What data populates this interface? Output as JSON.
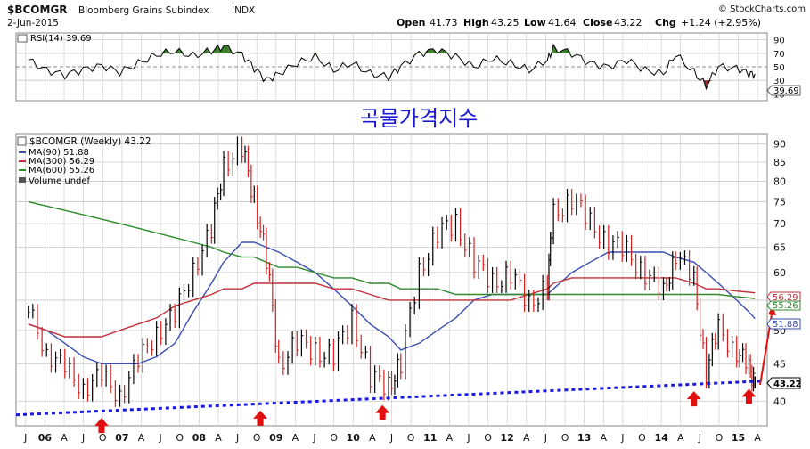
{
  "header": {
    "symbol": "$BCOMGR",
    "name": "Bloomberg Grains Subindex",
    "exchange": "INDX",
    "date": "2-Jun-2015",
    "copyright": "© StockCharts.com",
    "ohlc": {
      "open_label": "Open",
      "open": "41.73",
      "high_label": "High",
      "high": "43.25",
      "low_label": "Low",
      "low": "41.64",
      "close_label": "Close",
      "close": "43.22",
      "chg_label": "Chg",
      "chg": "+1.24 (+2.95%)"
    }
  },
  "annotation_title": "곡물가격지수",
  "rsi": {
    "label": "RSI(14) 39.69",
    "last_value_badge": "39.69",
    "ticks": [
      "90",
      "70",
      "50",
      "30",
      "10"
    ],
    "overbought": 70,
    "oversold": 30,
    "ylim": [
      0,
      100
    ],
    "colors": {
      "line": "#000000",
      "overbought_fill": "#3a7d2a",
      "oversold_fill": "#8b2e2e"
    }
  },
  "legend": {
    "main": "$BCOMGR (Weekly) 43.22",
    "ma90": "MA(90) 51.88",
    "ma300": "MA(300) 56.29",
    "ma600": "MA(600) 55.26",
    "volume": "Volume undef"
  },
  "price_badges": {
    "ma300": "56.29",
    "ma600": "55.26",
    "ma90": "51.88",
    "close": "43.22"
  },
  "colors": {
    "price": "#000000",
    "down_bar": "#d62020",
    "ma90": "#3a4fb0",
    "ma300": "#c0303a",
    "ma600": "#2c8a2c",
    "trendline": "#1a1ae0",
    "arrow": "#e01010",
    "grid": "#c8c8c8"
  },
  "chart_data": {
    "type": "line",
    "title": "$BCOMGR (Weekly)",
    "y_scale": "log",
    "ylim": [
      37,
      93
    ],
    "y_ticks": [
      40,
      45,
      50,
      55,
      60,
      65,
      70,
      75,
      80,
      85,
      90
    ],
    "x_labels": [
      "J",
      "06",
      "A",
      "J",
      "O",
      "07",
      "A",
      "J",
      "O",
      "08",
      "A",
      "J",
      "O",
      "09",
      "A",
      "J",
      "O",
      "10",
      "A",
      "J",
      "O",
      "11",
      "A",
      "J",
      "O",
      "12",
      "A",
      "J",
      "O",
      "13",
      "A",
      "J",
      "O",
      "14",
      "A",
      "J",
      "O",
      "15",
      "A"
    ],
    "dates": [
      "2005-07",
      "2005-10",
      "2006-01",
      "2006-04",
      "2006-07",
      "2006-10",
      "2007-01",
      "2007-04",
      "2007-07",
      "2007-10",
      "2008-01",
      "2008-03",
      "2008-06",
      "2008-08",
      "2008-10",
      "2008-12",
      "2009-03",
      "2009-06",
      "2009-09",
      "2009-12",
      "2010-03",
      "2010-06",
      "2010-08",
      "2010-11",
      "2011-02",
      "2011-05",
      "2011-08",
      "2011-11",
      "2012-02",
      "2012-05",
      "2012-08",
      "2012-09",
      "2012-12",
      "2013-03",
      "2013-06",
      "2013-09",
      "2013-12",
      "2014-03",
      "2014-05",
      "2014-08",
      "2014-10",
      "2014-12",
      "2015-03",
      "2015-05",
      "2015-06"
    ],
    "series": [
      {
        "name": "$BCOMGR (Weekly)",
        "values": [
          53,
          47,
          44,
          42,
          43,
          41,
          45,
          50,
          52,
          61,
          68,
          85,
          88,
          76,
          62,
          45,
          48,
          47,
          46,
          52,
          43,
          42,
          45,
          60,
          68,
          70,
          62,
          58,
          60,
          54,
          58,
          72,
          76,
          70,
          66,
          64,
          60,
          56,
          64,
          58,
          44,
          50,
          47,
          44,
          43.22
        ]
      },
      {
        "name": "MA(90)",
        "values": [
          51,
          50,
          48,
          46,
          45,
          45,
          45,
          46,
          48,
          53,
          58,
          62,
          66,
          66,
          65,
          64,
          62,
          60,
          57,
          54,
          51,
          49,
          47,
          48,
          50,
          52,
          55,
          56,
          56,
          56,
          56,
          57,
          60,
          62,
          64,
          64,
          64,
          64,
          63,
          62,
          60,
          58,
          55,
          53,
          51.88
        ]
      },
      {
        "name": "MA(300)",
        "values": [
          51,
          50,
          49,
          49,
          49,
          50,
          51,
          52,
          54,
          55,
          56,
          57,
          57,
          58,
          58,
          58,
          58,
          58,
          57,
          57,
          56,
          55,
          55,
          55,
          55,
          55,
          55,
          55,
          55,
          56,
          57,
          58,
          59,
          59,
          59,
          59,
          59,
          59,
          59,
          58,
          57,
          57,
          56.6,
          56.4,
          56.29
        ]
      },
      {
        "name": "MA(600)",
        "values": [
          75,
          74,
          73,
          72,
          71,
          70,
          69,
          68,
          67,
          66,
          65,
          64,
          63,
          63,
          62,
          61,
          61,
          60,
          59,
          59,
          58,
          58,
          57,
          57,
          57,
          56,
          56,
          56,
          56,
          56,
          56,
          56,
          56,
          56,
          56,
          56,
          56,
          56,
          56,
          56,
          56,
          56,
          55.6,
          55.4,
          55.26
        ]
      }
    ],
    "rsi_values": [
      60,
      45,
      38,
      46,
      52,
      42,
      55,
      68,
      73,
      66,
      74,
      80,
      68,
      48,
      30,
      40,
      55,
      65,
      45,
      55,
      40,
      35,
      50,
      70,
      75,
      65,
      50,
      62,
      55,
      45,
      60,
      78,
      70,
      55,
      50,
      60,
      45,
      40,
      68,
      42,
      22,
      50,
      48,
      40,
      39.69
    ],
    "support_line": {
      "start": [
        "2005-05",
        38.3
      ],
      "end": [
        "2015-07",
        42.6
      ]
    },
    "support_touches": [
      "2006-07",
      "2008-09",
      "2010-05",
      "2014-08",
      "2015-05"
    ]
  }
}
